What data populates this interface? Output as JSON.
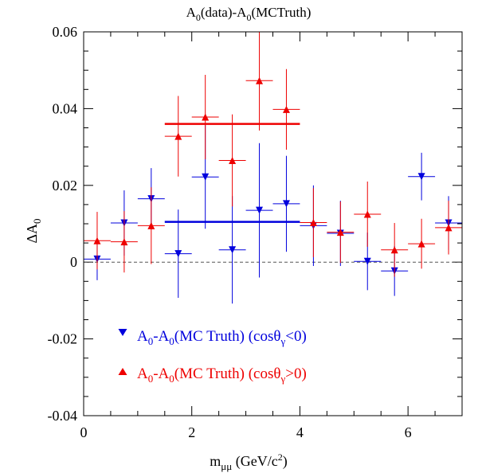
{
  "chart_data": {
    "type": "scatter",
    "title_main": "A",
    "title_sub1": "0",
    "title_mid": "(data)-A",
    "title_sub2": "0",
    "title_end": "(MCTruth)",
    "ylabel_main": "ΔA",
    "ylabel_sub": "0",
    "xlabel_main": "m",
    "xlabel_sub": "μμ",
    "xlabel_unit_pre": " (GeV/c",
    "xlabel_unit_sup": "2",
    "xlabel_unit_post": ")",
    "xlim": [
      0,
      7
    ],
    "ylim": [
      -0.04,
      0.06
    ],
    "x_ticks": [
      0,
      2,
      4,
      6
    ],
    "x_tick_labels": [
      "0",
      "2",
      "4",
      "6"
    ],
    "y_ticks": [
      -0.04,
      -0.02,
      0,
      0.02,
      0.04,
      0.06
    ],
    "y_tick_labels": [
      "-0.04",
      "-0.02",
      "0",
      "0.02",
      "0.04",
      "0.06"
    ],
    "reference_line_y": 0,
    "legend_position": "bottom-left",
    "series": [
      {
        "key": "neg",
        "color": "#0000dd",
        "marker": "triangle-down",
        "legend": {
          "p1": "A",
          "s1": "0",
          "p2": "-A",
          "s2": "0",
          "p3": "(MC Truth) (cosθ",
          "s3": "γ",
          "p4": "<0)"
        },
        "x": [
          0.25,
          0.75,
          1.25,
          1.75,
          2.25,
          2.75,
          3.25,
          3.75,
          4.25,
          4.75,
          5.25,
          5.75,
          6.25,
          6.75
        ],
        "y": [
          0.0008,
          0.0102,
          0.0165,
          0.0022,
          0.0222,
          0.0032,
          0.0135,
          0.0152,
          0.0095,
          0.0075,
          0.0002,
          -0.0023,
          0.0223,
          0.0102
        ],
        "yerr": [
          0.0055,
          0.0085,
          0.008,
          0.0115,
          0.0135,
          0.014,
          0.0175,
          0.0125,
          0.0105,
          0.0085,
          0.0075,
          0.0065,
          0.0062,
          0.007
        ],
        "xerr": 0.25,
        "mean": {
          "x_range": [
            1.5,
            4.0
          ],
          "y": 0.0105
        }
      },
      {
        "key": "pos",
        "color": "#ee0000",
        "marker": "triangle-up",
        "legend": {
          "p1": "A",
          "s1": "0",
          "p2": "-A",
          "s2": "0",
          "p3": "(MC Truth) (cosθ",
          "s3": "γ",
          "p4": ">0)"
        },
        "x": [
          0.25,
          0.75,
          1.25,
          1.75,
          2.25,
          2.75,
          3.25,
          3.75,
          4.25,
          4.75,
          5.25,
          5.75,
          6.25,
          6.75
        ],
        "y": [
          0.0056,
          0.0053,
          0.0095,
          0.0328,
          0.0378,
          0.0265,
          0.0473,
          0.0398,
          0.0103,
          0.0078,
          0.0125,
          0.0032,
          0.0048,
          0.009
        ],
        "yerr": [
          0.0075,
          0.008,
          0.01,
          0.0105,
          0.011,
          0.012,
          0.013,
          0.0105,
          0.009,
          0.008,
          0.0085,
          0.007,
          0.0065,
          0.007
        ],
        "xerr": 0.25,
        "mean": {
          "x_range": [
            1.5,
            4.0
          ],
          "y": 0.036
        }
      }
    ]
  }
}
